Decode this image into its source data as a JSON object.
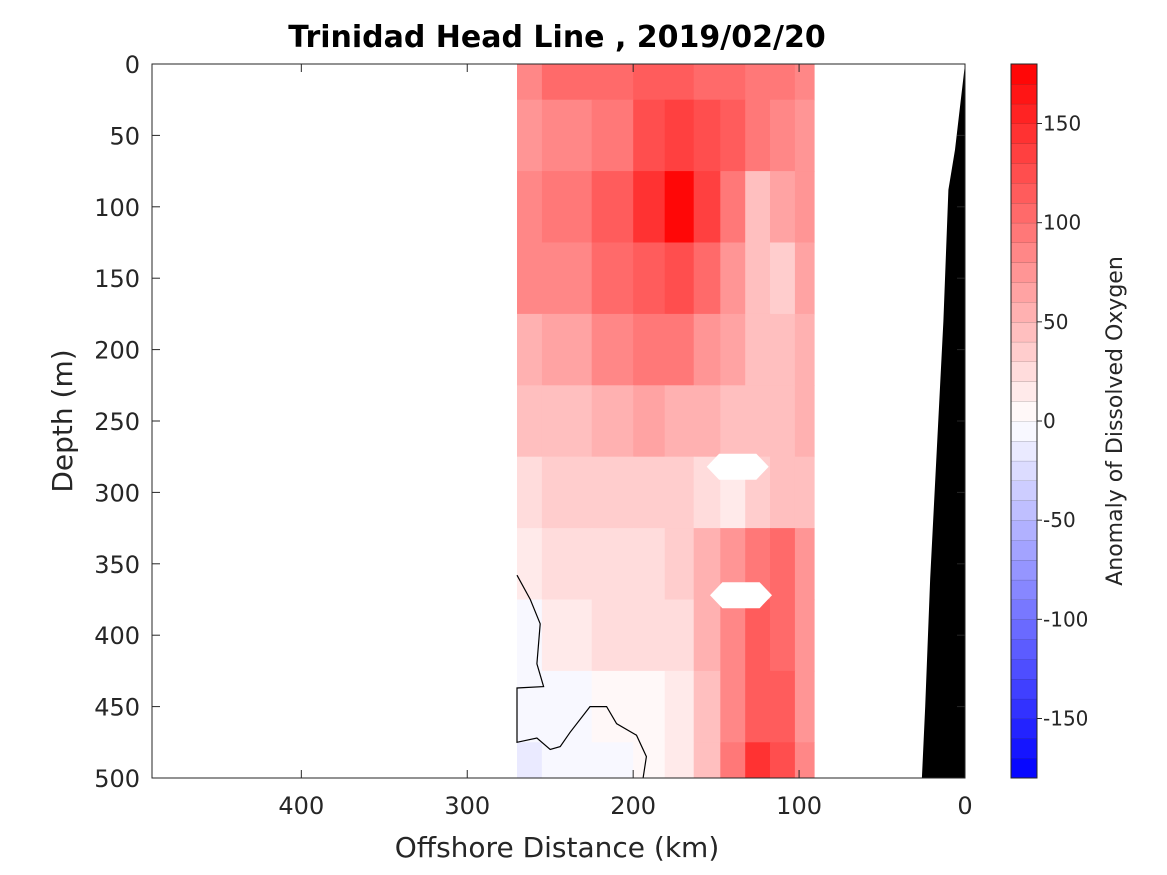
{
  "chart_data": {
    "type": "heatmap",
    "subtype": "filled-contour depth section",
    "title": "Trinidad Head Line , 2019/02/20",
    "xlabel": "Offshore Distance (km)",
    "ylabel": "Depth (m)",
    "xlim": [
      490,
      0
    ],
    "xdirection": "reversed",
    "ylim": [
      0,
      500
    ],
    "ydirection": "reversed (depth increases downward)",
    "xticks": [
      400,
      300,
      200,
      100,
      0
    ],
    "yticks": [
      0,
      50,
      100,
      150,
      200,
      250,
      300,
      350,
      400,
      450,
      500
    ],
    "data_extent_km": [
      270,
      91
    ],
    "colorbar": {
      "label": "Anomaly of Dissolved Oxygen",
      "range": [
        -180,
        180
      ],
      "levels": 36,
      "ticks": [
        150,
        100,
        50,
        0,
        -50,
        -100,
        -150
      ],
      "low_color": "#0000ff",
      "mid_color": "#ffffff",
      "high_color": "#ff0000"
    },
    "anomaly_field_samples": {
      "columns_km": [
        270,
        240,
        210,
        190,
        172,
        155,
        140,
        125,
        110,
        95
      ],
      "rows_depth_m": [
        0,
        50,
        100,
        150,
        200,
        250,
        300,
        350,
        400,
        450,
        500
      ],
      "values": [
        [
          80,
          100,
          105,
          110,
          110,
          105,
          100,
          95,
          90,
          85
        ],
        [
          75,
          85,
          95,
          120,
          135,
          120,
          110,
          90,
          80,
          75
        ],
        [
          85,
          90,
          110,
          140,
          175,
          135,
          90,
          45,
          60,
          70
        ],
        [
          80,
          85,
          100,
          110,
          120,
          100,
          70,
          40,
          35,
          60
        ],
        [
          50,
          65,
          80,
          95,
          90,
          75,
          60,
          45,
          45,
          55
        ],
        [
          40,
          45,
          55,
          60,
          55,
          50,
          45,
          45,
          45,
          50
        ],
        [
          25,
          30,
          35,
          35,
          30,
          25,
          10,
          30,
          40,
          45
        ],
        [
          15,
          20,
          25,
          25,
          30,
          50,
          70,
          90,
          100,
          70
        ],
        [
          -5,
          10,
          20,
          20,
          25,
          50,
          80,
          110,
          105,
          70
        ],
        [
          -10,
          -5,
          0,
          5,
          15,
          40,
          80,
          110,
          110,
          75
        ],
        [
          -15,
          -10,
          -5,
          0,
          10,
          40,
          90,
          140,
          120,
          85
        ]
      ]
    },
    "missing_data_patches": [
      {
        "center_km": 137,
        "center_depth_m": 282
      },
      {
        "center_km": 135,
        "center_depth_m": 372
      }
    ],
    "zero_contour_km_depth": [
      [
        270,
        358
      ],
      [
        262,
        375
      ],
      [
        256,
        392
      ],
      [
        258,
        420
      ],
      [
        254,
        436
      ],
      [
        270,
        437
      ],
      [
        270,
        475
      ],
      [
        258,
        472
      ],
      [
        250,
        480
      ],
      [
        244,
        478
      ],
      [
        238,
        468
      ],
      [
        226,
        450
      ],
      [
        216,
        450
      ],
      [
        210,
        462
      ],
      [
        198,
        470
      ],
      [
        192,
        485
      ],
      [
        194,
        500
      ]
    ],
    "bathymetry_km_depth": [
      [
        0,
        0
      ],
      [
        3,
        30
      ],
      [
        6,
        60
      ],
      [
        10,
        88
      ],
      [
        13,
        180
      ],
      [
        17,
        270
      ],
      [
        21,
        360
      ],
      [
        24,
        450
      ],
      [
        26,
        500
      ]
    ],
    "bathymetry_color": "#000000"
  }
}
